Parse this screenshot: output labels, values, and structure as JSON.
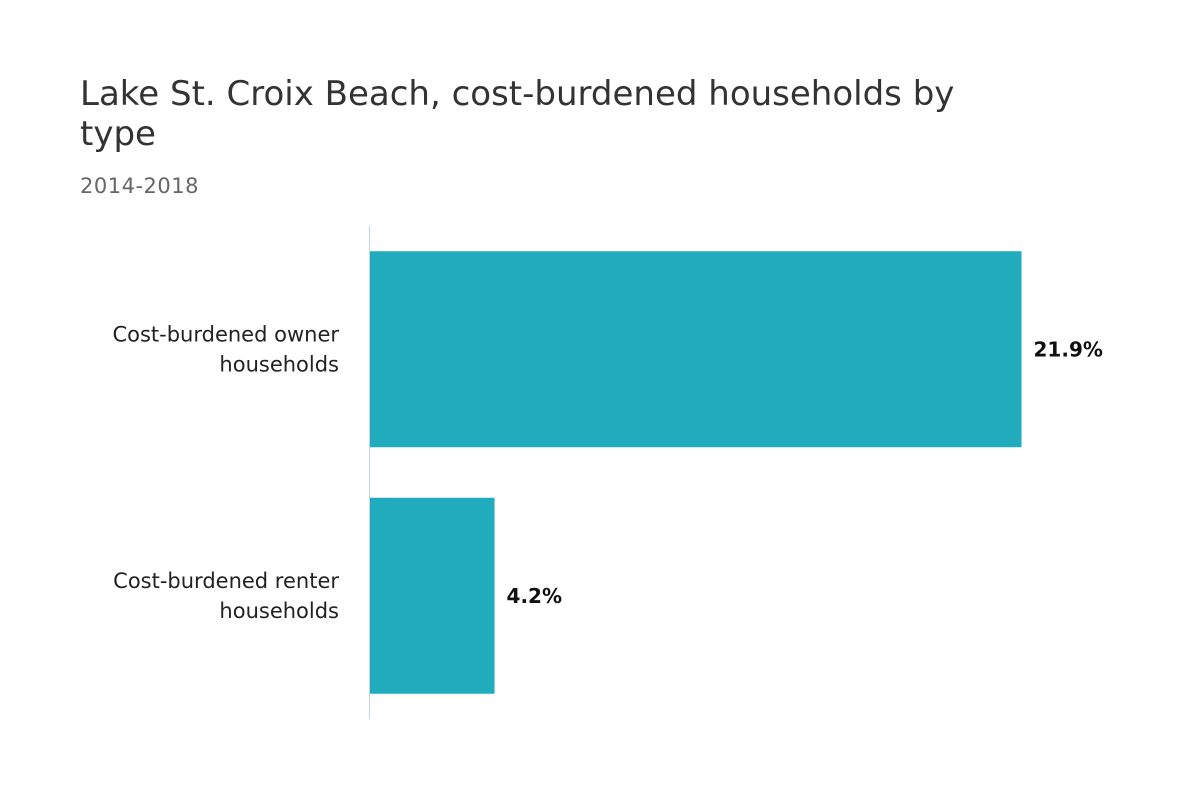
{
  "chart": {
    "title": "Lake St. Croix Beach, cost-burdened households by type",
    "subtitle": "2014-2018"
  },
  "colors": {
    "bar": "#20acbc",
    "axis": "#c8d4e0"
  },
  "chart_data": {
    "type": "bar",
    "orientation": "horizontal",
    "title": "Lake St. Croix Beach, cost-burdened households by type",
    "subtitle": "2014-2018",
    "categories": [
      [
        "Cost-burdened owner",
        "households"
      ],
      [
        "Cost-burdened renter",
        "households"
      ]
    ],
    "values": [
      21.9,
      4.2
    ],
    "value_labels": [
      "21.9%",
      "4.2%"
    ],
    "xlim": [
      0,
      22
    ],
    "grid": false,
    "legend": "none"
  }
}
